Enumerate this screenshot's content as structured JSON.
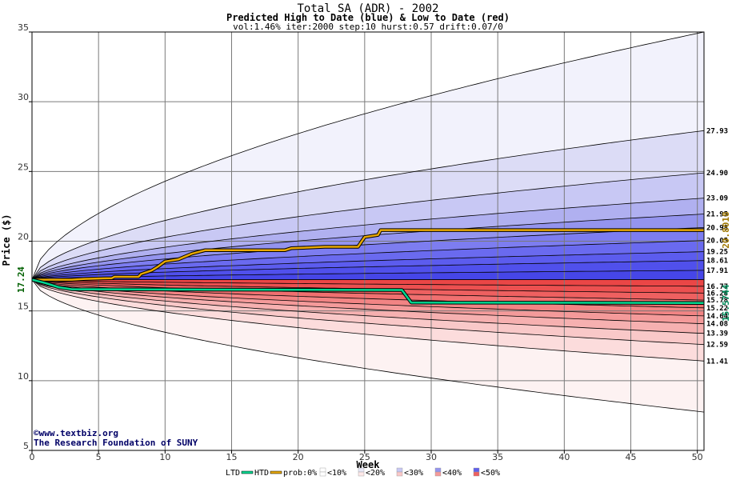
{
  "chart_data": {
    "type": "area",
    "title": "Total SA (ADR) - 2002",
    "subtitle": "Predicted High to Date (blue) &  Low to Date (red)",
    "params": "vol:1.46% iter:2000 step:10 hurst:0.57 drift:0.07/0",
    "xlabel": "Week",
    "ylabel": "Price ($)",
    "xlim": [
      0,
      50.5
    ],
    "ylim": [
      5,
      35
    ],
    "x_ticks": [
      0,
      5,
      10,
      15,
      20,
      25,
      30,
      35,
      40,
      45,
      50
    ],
    "y_ticks": [
      5,
      10,
      15,
      20,
      25,
      30,
      35
    ],
    "grid": true,
    "start_price": 17.24,
    "start_price_label": "17.24",
    "high_quantile_end_values": [
      35.0,
      27.93,
      24.9,
      23.09,
      21.95,
      20.98,
      20.05,
      19.25,
      18.61,
      17.91,
      17.24
    ],
    "low_quantile_end_values": [
      7.75,
      11.41,
      12.59,
      13.39,
      14.08,
      14.64,
      15.22,
      15.78,
      16.28,
      16.77,
      17.24
    ],
    "band_fill_colors": [
      "#f2f2fc",
      "#dcdcf6",
      "#c8c8f4",
      "#b0b0f0",
      "#9494ee",
      "#7d7df0",
      "#6a6aef",
      "#5c5cee",
      "#5050ec",
      "#4646e8"
    ],
    "low_band_fill_colors": [
      "#fdf2f2",
      "#fcdcdc",
      "#f9c8c8",
      "#f6b0b0",
      "#f49a9a",
      "#f28484",
      "#f07070",
      "#ee6060",
      "#ec5050",
      "#ea4646"
    ],
    "right_labels": [
      {
        "value": 27.93,
        "text": "27.93"
      },
      {
        "value": 24.9,
        "text": "24.90"
      },
      {
        "value": 23.09,
        "text": "23.09"
      },
      {
        "value": 21.95,
        "text": "21.95"
      },
      {
        "value": 20.98,
        "text": "20.98"
      },
      {
        "value": 20.05,
        "text": "20.05"
      },
      {
        "value": 19.25,
        "text": "19.25"
      },
      {
        "value": 18.61,
        "text": "18.61"
      },
      {
        "value": 17.91,
        "text": "17.91"
      },
      {
        "value": 16.77,
        "text": "16.77"
      },
      {
        "value": 16.28,
        "text": "16.28"
      },
      {
        "value": 15.78,
        "text": "15.78"
      },
      {
        "value": 15.22,
        "text": "15.22"
      },
      {
        "value": 14.64,
        "text": "14.64"
      },
      {
        "value": 14.08,
        "text": "14.08"
      },
      {
        "value": 13.39,
        "text": "13.39"
      },
      {
        "value": 12.59,
        "text": "12.59"
      },
      {
        "value": 11.41,
        "text": "11.41"
      }
    ],
    "series": [
      {
        "name": "HTD",
        "color": "#e8a800",
        "points": [
          [
            0,
            17.24
          ],
          [
            3,
            17.24
          ],
          [
            4,
            17.3
          ],
          [
            6,
            17.35
          ],
          [
            6.2,
            17.45
          ],
          [
            8,
            17.45
          ],
          [
            8.2,
            17.65
          ],
          [
            9,
            17.9
          ],
          [
            9.5,
            18.2
          ],
          [
            10,
            18.55
          ],
          [
            11,
            18.7
          ],
          [
            12,
            19.1
          ],
          [
            13,
            19.35
          ],
          [
            19,
            19.35
          ],
          [
            19.5,
            19.5
          ],
          [
            21,
            19.55
          ],
          [
            22,
            19.6
          ],
          [
            24.5,
            19.6
          ],
          [
            25,
            20.3
          ],
          [
            26,
            20.45
          ],
          [
            26.2,
            20.8
          ],
          [
            50.5,
            20.8
          ]
        ],
        "end_label": "20.8018"
      },
      {
        "name": "LTD",
        "color": "#00d890",
        "points": [
          [
            0,
            17.24
          ],
          [
            1,
            17.0
          ],
          [
            2,
            16.7
          ],
          [
            3,
            16.55
          ],
          [
            27.8,
            16.5
          ],
          [
            28.5,
            15.6
          ],
          [
            50.5,
            15.57
          ]
        ],
        "end_label": "15.5744"
      }
    ],
    "credits": [
      "©www.textbiz.org",
      "The Research Foundation of SUNY"
    ],
    "legend": {
      "ltd": "LTD",
      "htd": "HTD",
      "prob_prefix": "prob:0%",
      "items": [
        {
          "label": "<10%",
          "blue": "#ffffff",
          "red": "#ffffff"
        },
        {
          "label": "<20%",
          "blue": "#e8e8f8",
          "red": "#fde8e8"
        },
        {
          "label": "<30%",
          "blue": "#c8c8f4",
          "red": "#f9c8c8"
        },
        {
          "label": "<40%",
          "blue": "#9494ee",
          "red": "#f49a9a"
        },
        {
          "label": "<50%",
          "blue": "#6060ec",
          "red": "#ee6060"
        }
      ]
    }
  }
}
